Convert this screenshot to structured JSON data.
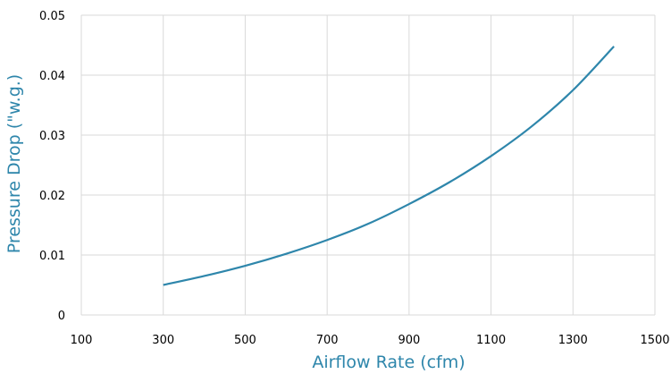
{
  "chart_data": {
    "type": "line",
    "title": "",
    "xlabel": "Airflow Rate (cfm)",
    "ylabel": "Pressure Drop (\"w.g.)",
    "xlim": [
      100,
      1500
    ],
    "ylim": [
      0,
      0.05
    ],
    "x_ticks": [
      "100",
      "300",
      "500",
      "700",
      "900",
      "1100",
      "1300",
      "1500"
    ],
    "y_ticks": [
      "0",
      "0.01",
      "0.02",
      "0.03",
      "0.04",
      "0.05"
    ],
    "grid": true,
    "legend": "none",
    "series": [
      {
        "color": "#2e86ab",
        "x": [
          300,
          400,
          500,
          600,
          700,
          800,
          900,
          1000,
          1100,
          1200,
          1300,
          1400
        ],
        "y": [
          0.005,
          0.0065,
          0.0082,
          0.0102,
          0.0125,
          0.0152,
          0.0185,
          0.0222,
          0.0265,
          0.0315,
          0.0375,
          0.0448
        ]
      }
    ]
  },
  "colors": {
    "axis_title": "#2e86ab",
    "grid": "#d9d9d9",
    "tick_text": "#000000"
  }
}
